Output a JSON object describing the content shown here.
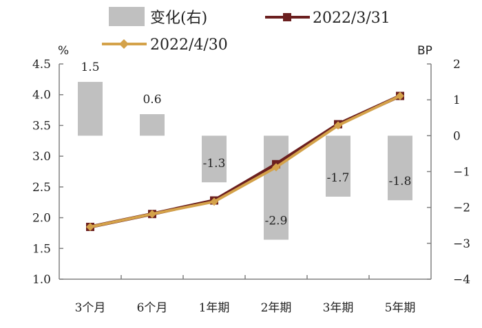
{
  "chart_data": {
    "type": "bar+line",
    "categories": [
      "3个月",
      "6个月",
      "1年期",
      "2年期",
      "3年期",
      "5年期"
    ],
    "left_axis": {
      "unit": "%",
      "range": [
        1.0,
        4.5
      ],
      "ticks": [
        "1.0",
        "1.5",
        "2.0",
        "2.5",
        "3.0",
        "3.5",
        "4.0",
        "4.5"
      ]
    },
    "right_axis": {
      "unit": "BP",
      "range": [
        -4,
        2
      ],
      "ticks": [
        "2",
        "1",
        "0",
        "−1",
        "−2",
        "−3",
        "−4"
      ]
    },
    "bar_series": {
      "name": "变化(右)",
      "axis": "right",
      "color": "#c0c0c0",
      "values": [
        1.5,
        0.6,
        -1.3,
        -2.9,
        -1.7,
        -1.8
      ],
      "labels": [
        "1.5",
        "0.6",
        "-1.3",
        "-2.9",
        "-1.7",
        "-1.8"
      ]
    },
    "series": [
      {
        "name": "2022/3/31",
        "axis": "left",
        "color": "#6b1f1f",
        "marker": "square",
        "values": [
          1.85,
          2.06,
          2.28,
          2.87,
          3.52,
          3.98
        ]
      },
      {
        "name": "2022/4/30",
        "axis": "left",
        "color": "#d4a24a",
        "marker": "diamond",
        "values": [
          1.85,
          2.06,
          2.26,
          2.82,
          3.5,
          3.98
        ]
      }
    ],
    "legend": {
      "items": [
        "变化(右)",
        "2022/3/31",
        "2022/4/30"
      ],
      "placement": "top"
    },
    "grid": false
  }
}
